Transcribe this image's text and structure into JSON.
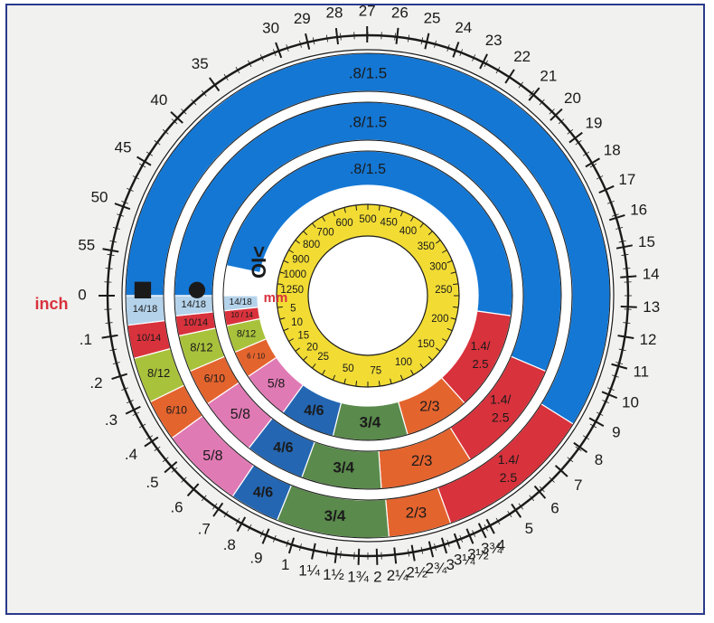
{
  "colors": {
    "blue": "#1477d4",
    "red": "#d8323c",
    "orange": "#e4642e",
    "green": "#5a8a4c",
    "darkblue": "#2466b2",
    "pink": "#e07ab4",
    "lime": "#a9c23c",
    "lightblue": "#b4d2ea",
    "yellow": "#f2dc34",
    "accent_text": "#d8323c",
    "frame": "#2a3a8c"
  },
  "labels": {
    "inch": "inch",
    "mm": "mm",
    "square_symbol": "■",
    "circle_symbol": "●",
    "vertical_symbol": "OI<"
  },
  "outer_scale": {
    "right": [
      "30",
      "29",
      "28",
      "27",
      "26",
      "25",
      "24",
      "23",
      "22",
      "21",
      "20",
      "19",
      "18",
      "17",
      "16",
      "15",
      "14",
      "13",
      "12",
      "11",
      "10",
      "9",
      "8",
      "7",
      "6",
      "5",
      "4"
    ],
    "left": [
      "35",
      "40",
      "45",
      "50",
      "55",
      "0",
      ".1",
      ".2",
      ".3",
      ".4",
      ".5",
      ".6",
      ".7",
      ".8",
      ".9",
      "1",
      "1¼",
      "1½",
      "1¾",
      "2",
      "2¼",
      "2½",
      "2¾",
      "3",
      "3¼",
      "3½",
      "3¾"
    ]
  },
  "rings": {
    "outer": [
      {
        "label": ".8/1.5",
        "color": "blue"
      },
      {
        "label": "1.4/ 2.5",
        "color": "red"
      },
      {
        "label": "2/3",
        "color": "orange"
      },
      {
        "label": "3/4",
        "color": "green"
      },
      {
        "label": "4/6",
        "color": "darkblue"
      },
      {
        "label": "5/8",
        "color": "pink"
      },
      {
        "label": "6/10",
        "color": "orange"
      },
      {
        "label": "8/12",
        "color": "lime"
      },
      {
        "label": "10/14",
        "color": "red"
      },
      {
        "label": "14/18",
        "color": "lightblue"
      }
    ],
    "middle": [
      {
        "label": ".8/1.5",
        "color": "blue"
      },
      {
        "label": "1.4/ 2.5",
        "color": "red"
      },
      {
        "label": "2/3",
        "color": "orange"
      },
      {
        "label": "3/4",
        "color": "green"
      },
      {
        "label": "4/6",
        "color": "darkblue"
      },
      {
        "label": "5/8",
        "color": "pink"
      },
      {
        "label": "6/10",
        "color": "orange"
      },
      {
        "label": "8/12",
        "color": "lime"
      },
      {
        "label": "10/14",
        "color": "red"
      },
      {
        "label": "14/18",
        "color": "lightblue"
      }
    ],
    "inner": [
      {
        "label": ".8/1.5",
        "color": "blue"
      },
      {
        "label": "1.4/ 2.5",
        "color": "red"
      },
      {
        "label": "2/3",
        "color": "orange"
      },
      {
        "label": "3/4",
        "color": "green"
      },
      {
        "label": "4/6",
        "color": "darkblue"
      },
      {
        "label": "5/8",
        "color": "pink"
      },
      {
        "label": "6 / 10",
        "color": "orange"
      },
      {
        "label": "8/12",
        "color": "lime"
      },
      {
        "label": "10 / 14",
        "color": "red"
      },
      {
        "label": "14/18",
        "color": "lightblue"
      }
    ]
  },
  "mm_scale": [
    "5",
    "10",
    "15",
    "20",
    "25",
    "50",
    "75",
    "100",
    "150",
    "200",
    "250",
    "300",
    "350",
    "400",
    "450",
    "500",
    "600",
    "700",
    "800",
    "900",
    "1000",
    "1250"
  ]
}
